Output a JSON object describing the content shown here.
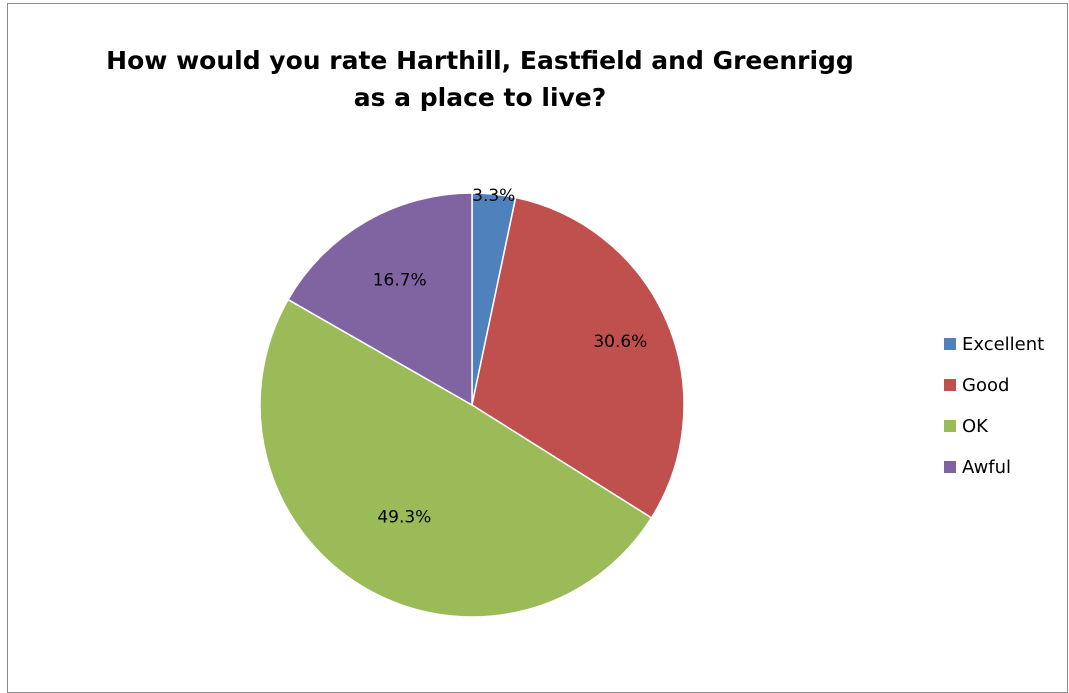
{
  "chart_data": {
    "type": "pie",
    "title": "How would you rate Harthill, Eastfield and Greenrigg as a place to live?",
    "categories": [
      "Excellent",
      "Good",
      "OK",
      "Awful"
    ],
    "values": [
      3.3,
      30.6,
      49.3,
      16.7
    ],
    "labels": [
      "3.3%",
      "30.6%",
      "49.3%",
      "16.7%"
    ],
    "colors": [
      "#4F81BD",
      "#C0504D",
      "#9BBB59",
      "#8064A2"
    ],
    "legend_position": "right",
    "start_angle": "12 o'clock, clockwise"
  }
}
